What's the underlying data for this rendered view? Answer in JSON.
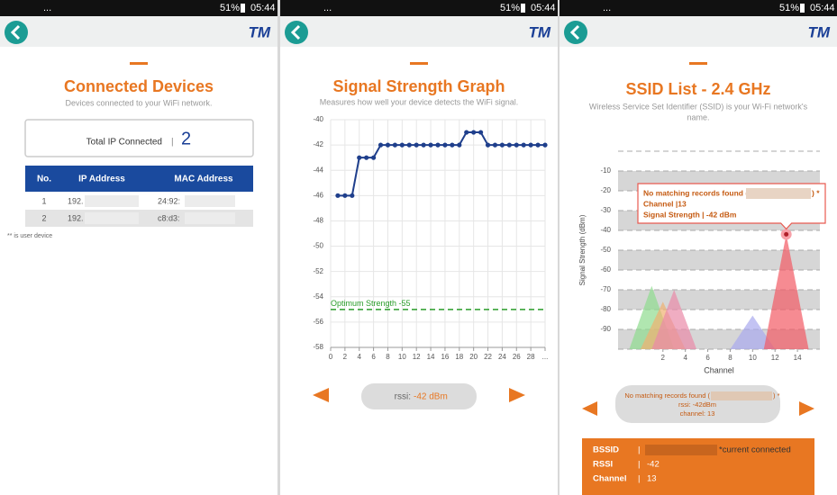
{
  "status_bar": {
    "dots": "...",
    "battery": "51%",
    "time": "05:44"
  },
  "logo": "TM",
  "devices": {
    "title": "Connected Devices",
    "subtitle": "Devices connected to your WiFi network.",
    "total_label": "Total IP Connected",
    "total_separator": "|",
    "total": "2",
    "table": {
      "header": [
        "No.",
        "IP Address",
        "MAC Address"
      ],
      "rows": [
        [
          "1",
          "192.",
          "24:92:"
        ],
        [
          "2",
          "192.",
          "c8:d3:"
        ]
      ]
    },
    "footnote": "** is user device"
  },
  "signal": {
    "title": "Signal Strength Graph",
    "subtitle": "Measures how well your device detects the WiFi signal.",
    "rssi_label": "rssi:",
    "rssi_value": "-42 dBm"
  },
  "ssid": {
    "title": "SSID List - 2.4 GHz",
    "subtitle": [
      "Wireless Service Set Identifier (SSID) is your Wi-Fi network's",
      "name."
    ],
    "tooltip": {
      "record_open": "No matching records found (",
      "record_close": ") *",
      "channel": "Channel |13",
      "signal": "Signal Strength | -42 dBm"
    },
    "info": {
      "record_open": "No matching records found (",
      "record_close": ") *",
      "rssi": "rssi: -42dBm",
      "channel": "channel: 13"
    },
    "details": [
      [
        "BSSID",
        "|",
        "*current connected"
      ],
      [
        "RSSI",
        "|",
        "-42"
      ],
      [
        "Channel",
        "|",
        "13"
      ]
    ]
  },
  "chart_data": [
    {
      "type": "line",
      "color": "#1f3f8c",
      "grid": true,
      "x": [
        1,
        2,
        3,
        4,
        5,
        6,
        7,
        8,
        9,
        10,
        11,
        12,
        13,
        14,
        15,
        16,
        17,
        18,
        19,
        20,
        21,
        22,
        23,
        24,
        25,
        26,
        27,
        28,
        29,
        30
      ],
      "values": [
        -46,
        -46,
        -46,
        -43,
        -43,
        -43,
        -42,
        -42,
        -42,
        -42,
        -42,
        -42,
        -42,
        -42,
        -42,
        -42,
        -42,
        -42,
        -41,
        -41,
        -41,
        -42,
        -42,
        -42,
        -42,
        -42,
        -42,
        -42,
        -42,
        -42
      ],
      "xlim": [
        0,
        30
      ],
      "xticks": [
        0,
        2,
        4,
        6,
        8,
        10,
        12,
        14,
        16,
        18,
        20,
        22,
        24,
        26,
        28,
        {
          "value": 30,
          "label": "..."
        }
      ],
      "ylim": [
        -58,
        -40
      ],
      "yticks": [
        -40,
        -42,
        -44,
        -46,
        -48,
        -50,
        -52,
        -54,
        -56,
        -58
      ],
      "reference_line": {
        "value": -55,
        "label": "Optimum Strength -55",
        "color": "#2a9d2a"
      }
    },
    {
      "type": "area",
      "x_label": "Channel",
      "y_label": "Signal Strength (dBm)",
      "xlim": [
        -2,
        16
      ],
      "xticks": [
        2,
        4,
        6,
        8,
        10,
        12,
        14
      ],
      "ylim": [
        -100,
        0
      ],
      "yticks": [
        -10,
        -20,
        -30,
        -40,
        -50,
        -60,
        -70,
        -80,
        -90
      ],
      "series": [
        {
          "color": "#8fdc8f",
          "x": [
            1
          ],
          "values": [
            -68
          ]
        },
        {
          "color": "#f0b070",
          "x": [
            2
          ],
          "values": [
            -76
          ]
        },
        {
          "color": "#e98aa8",
          "x": [
            3
          ],
          "values": [
            -70
          ]
        },
        {
          "color": "#a9a9ee",
          "x": [
            10
          ],
          "values": [
            -83
          ]
        },
        {
          "color": "#f25a64",
          "x": [
            13
          ],
          "values": [
            -42
          ]
        }
      ]
    }
  ]
}
